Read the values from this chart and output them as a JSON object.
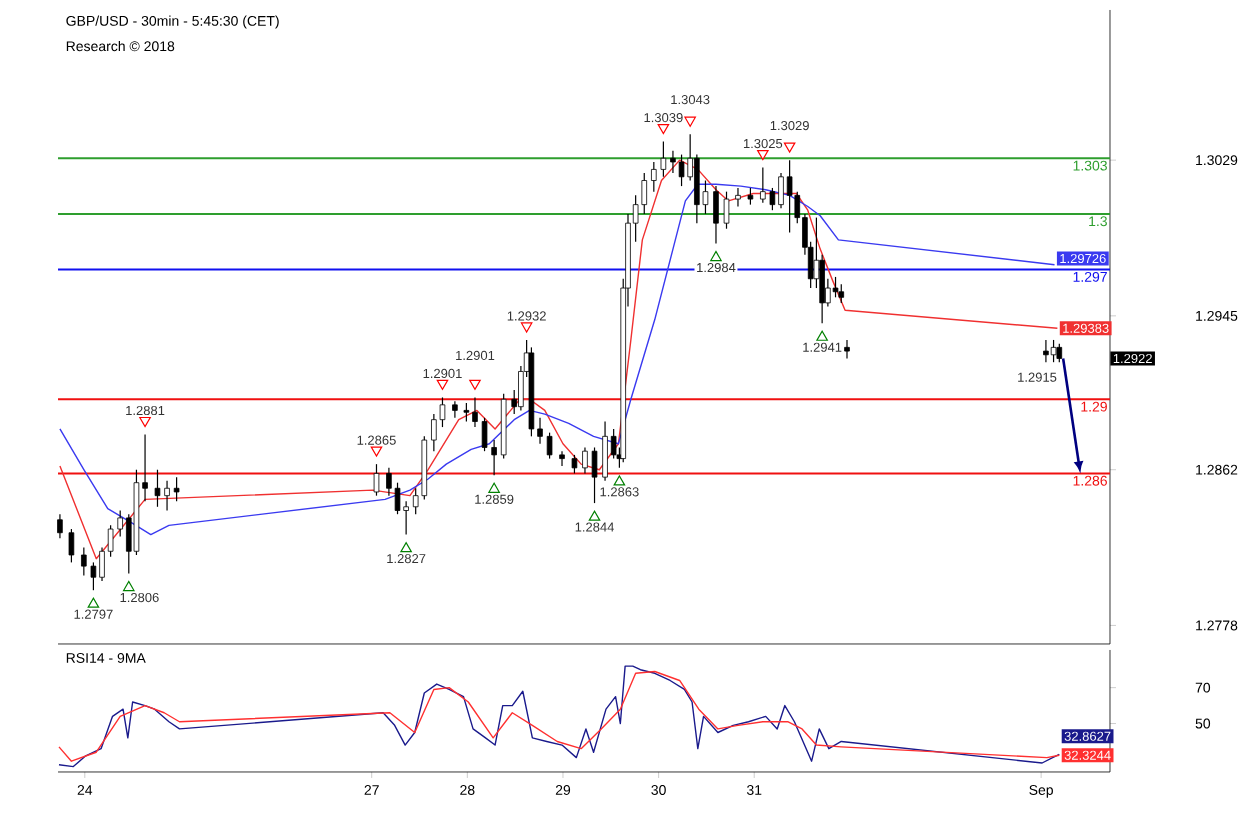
{
  "chart_data": [
    {
      "type": "candlestick",
      "title": "GBP/USD - 30min - 5:45:30 (CET)",
      "subtitle": "Research © 2018",
      "x": [
        23.74,
        23.86,
        23.99,
        24.09,
        24.18,
        24.27,
        24.37,
        24.46,
        24.54,
        24.63,
        24.76,
        24.86,
        24.96,
        27.05,
        27.18,
        27.27,
        27.36,
        27.46,
        27.55,
        27.65,
        27.74,
        27.87,
        27.99,
        28.08,
        28.18,
        28.28,
        28.38,
        28.49,
        28.56,
        28.62,
        28.67,
        28.76,
        28.86,
        28.99,
        29.12,
        29.23,
        29.33,
        29.44,
        29.53,
        29.59,
        29.63,
        29.68,
        29.76,
        29.85,
        29.95,
        30.05,
        30.15,
        30.24,
        30.33,
        30.4,
        30.49,
        30.6,
        30.71,
        30.83,
        30.96,
        31.09,
        31.19,
        31.28,
        31.37,
        31.45,
        31.53,
        31.59,
        31.65,
        31.71,
        31.77,
        31.85,
        31.91,
        31.97,
        34.05,
        34.13,
        34.19
      ],
      "ohlc": [
        [
          1.2835,
          1.2838,
          1.2825,
          1.2828
        ],
        [
          1.2828,
          1.283,
          1.2812,
          1.2816
        ],
        [
          1.2816,
          1.282,
          1.2805,
          1.281
        ],
        [
          1.281,
          1.2812,
          1.2797,
          1.2804
        ],
        [
          1.2804,
          1.282,
          1.2802,
          1.2818
        ],
        [
          1.2818,
          1.2832,
          1.2815,
          1.283
        ],
        [
          1.283,
          1.284,
          1.2826,
          1.2836
        ],
        [
          1.2836,
          1.2838,
          1.2806,
          1.2818
        ],
        [
          1.2818,
          1.2862,
          1.2816,
          1.2855
        ],
        [
          1.2855,
          1.2881,
          1.2845,
          1.2852
        ],
        [
          1.2852,
          1.2862,
          1.2842,
          1.2848
        ],
        [
          1.2848,
          1.2856,
          1.284,
          1.2852
        ],
        [
          1.2852,
          1.2858,
          1.2845,
          1.285
        ],
        [
          1.285,
          1.2865,
          1.2848,
          1.286
        ],
        [
          1.286,
          1.2863,
          1.2848,
          1.2852
        ],
        [
          1.2852,
          1.2855,
          1.2838,
          1.284
        ],
        [
          1.284,
          1.2845,
          1.2827,
          1.2842
        ],
        [
          1.2842,
          1.2852,
          1.2838,
          1.2848
        ],
        [
          1.2848,
          1.288,
          1.2846,
          1.2878
        ],
        [
          1.2878,
          1.2892,
          1.2872,
          1.2889
        ],
        [
          1.2889,
          1.2901,
          1.2885,
          1.2897
        ],
        [
          1.2897,
          1.2899,
          1.289,
          1.2894
        ],
        [
          1.2894,
          1.2898,
          1.2888,
          1.2893
        ],
        [
          1.2893,
          1.2901,
          1.2885,
          1.2888
        ],
        [
          1.2888,
          1.289,
          1.2872,
          1.2874
        ],
        [
          1.2874,
          1.2878,
          1.2859,
          1.287
        ],
        [
          1.287,
          1.2903,
          1.2868,
          1.29
        ],
        [
          1.29,
          1.2905,
          1.2892,
          1.2896
        ],
        [
          1.2896,
          1.2918,
          1.2894,
          1.2915
        ],
        [
          1.2915,
          1.2932,
          1.2912,
          1.2925
        ],
        [
          1.2925,
          1.2928,
          1.288,
          1.2884
        ],
        [
          1.2884,
          1.289,
          1.2876,
          1.288
        ],
        [
          1.288,
          1.2882,
          1.2868,
          1.287
        ],
        [
          1.287,
          1.2872,
          1.2864,
          1.2868
        ],
        [
          1.2868,
          1.287,
          1.286,
          1.2863
        ],
        [
          1.2863,
          1.2874,
          1.286,
          1.2872
        ],
        [
          1.2872,
          1.2874,
          1.2844,
          1.2858
        ],
        [
          1.2858,
          1.2888,
          1.2856,
          1.288
        ],
        [
          1.288,
          1.2884,
          1.2868,
          1.287
        ],
        [
          1.287,
          1.2874,
          1.2863,
          1.2868
        ],
        [
          1.2868,
          1.2965,
          1.2866,
          1.296
        ],
        [
          1.296,
          1.3,
          1.295,
          1.2995
        ],
        [
          1.2995,
          1.301,
          1.2985,
          1.3005
        ],
        [
          1.3005,
          1.3022,
          1.3,
          1.3018
        ],
        [
          1.3018,
          1.3028,
          1.3012,
          1.3024
        ],
        [
          1.3024,
          1.3039,
          1.302,
          1.303
        ],
        [
          1.303,
          1.3034,
          1.3022,
          1.3028
        ],
        [
          1.3028,
          1.3032,
          1.3015,
          1.302
        ],
        [
          1.302,
          1.3043,
          1.3018,
          1.303
        ],
        [
          1.303,
          1.3032,
          1.2995,
          1.3005
        ],
        [
          1.3005,
          1.3018,
          1.3,
          1.3012
        ],
        [
          1.3012,
          1.3015,
          1.2984,
          1.2995
        ],
        [
          1.2995,
          1.3012,
          1.2992,
          1.3008
        ],
        [
          1.3008,
          1.3014,
          1.3004,
          1.301
        ],
        [
          1.301,
          1.3014,
          1.3005,
          1.3008
        ],
        [
          1.3008,
          1.3025,
          1.3006,
          1.3012
        ],
        [
          1.3012,
          1.3014,
          1.3002,
          1.3005
        ],
        [
          1.3005,
          1.3022,
          1.3003,
          1.302
        ],
        [
          1.302,
          1.3029,
          1.299,
          1.301
        ],
        [
          1.301,
          1.3012,
          1.2995,
          1.2998
        ],
        [
          1.2998,
          1.3,
          1.2978,
          1.2982
        ],
        [
          1.2982,
          1.2985,
          1.296,
          1.2965
        ],
        [
          1.2965,
          1.2998,
          1.296,
          1.2975
        ],
        [
          1.2975,
          1.2978,
          1.2941,
          1.2952
        ],
        [
          1.2952,
          1.2965,
          1.295,
          1.296
        ],
        [
          1.296,
          1.2966,
          1.2955,
          1.2958
        ],
        [
          1.2958,
          1.2962,
          1.2952,
          1.2955
        ],
        [
          1.2928,
          1.2932,
          1.2922,
          1.2926
        ],
        [
          1.2926,
          1.2932,
          1.292,
          1.2924
        ],
        [
          1.2924,
          1.2932,
          1.292,
          1.2928
        ],
        [
          1.2928,
          1.293,
          1.292,
          1.2922
        ]
      ],
      "value_labels": [
        null,
        null,
        null,
        null,
        null,
        null,
        null,
        null,
        null,
        null,
        null,
        null,
        null,
        null,
        null,
        null,
        null,
        null,
        null,
        null,
        null,
        null,
        null,
        null,
        null,
        null,
        null,
        null,
        null,
        null,
        null,
        null,
        null,
        null,
        null,
        null,
        null,
        null,
        null,
        null,
        null,
        null,
        null,
        null,
        null,
        null,
        null,
        null,
        null,
        null,
        null,
        null,
        null,
        null,
        null,
        null,
        null,
        null,
        null,
        null,
        null,
        null,
        null,
        null,
        null,
        null,
        null,
        null,
        null,
        null,
        "1.2922"
      ],
      "color": "#000000",
      "series": [
        {
          "type": "line",
          "color": "#f03030",
          "x": [
            23.74,
            24.12,
            24.63,
            27.01,
            27.4,
            27.59,
            27.91,
            28.1,
            28.29,
            28.55,
            28.65,
            28.81,
            29,
            29.19,
            29.38,
            29.58,
            29.71,
            29.83,
            30.03,
            30.22,
            30.41,
            30.6,
            30.73,
            30.99,
            31.24,
            31.44,
            31.56,
            31.69,
            31.82,
            31.95,
            34.17
          ],
          "values": [
            1.2864,
            1.2814,
            1.2846,
            1.2851,
            1.2848,
            1.2862,
            1.2889,
            1.2894,
            1.2884,
            1.29,
            1.29,
            1.2894,
            1.2876,
            1.2865,
            1.2862,
            1.2876,
            1.2932,
            1.2986,
            1.3018,
            1.3029,
            1.3024,
            1.3013,
            1.3007,
            1.3011,
            1.3011,
            1.3011,
            1.3002,
            1.2981,
            1.2964,
            1.2948,
            1.29383
          ],
          "value_labels": [
            null,
            null,
            null,
            null,
            null,
            null,
            null,
            null,
            null,
            null,
            null,
            null,
            null,
            null,
            null,
            null,
            null,
            null,
            null,
            null,
            null,
            null,
            null,
            null,
            null,
            null,
            null,
            null,
            null,
            null,
            "1.29383"
          ]
        },
        {
          "type": "line",
          "color": "#3a3af0",
          "x": [
            23.74,
            23.99,
            24.24,
            24.5,
            24.69,
            24.88,
            27.14,
            27.4,
            27.59,
            27.78,
            28.04,
            28.23,
            28.49,
            28.65,
            28.81,
            29.06,
            29.32,
            29.58,
            29.71,
            29.96,
            30.15,
            30.28,
            30.41,
            30.6,
            30.86,
            31.12,
            31.37,
            31.56,
            31.69,
            31.88,
            34.14
          ],
          "values": [
            1.2884,
            1.2862,
            1.2841,
            1.2833,
            1.2827,
            1.2832,
            1.2846,
            1.2851,
            1.2857,
            1.2865,
            1.2873,
            1.2876,
            1.2889,
            1.2894,
            1.2892,
            1.2887,
            1.288,
            1.2876,
            1.29,
            1.2943,
            1.2981,
            1.3007,
            1.3016,
            1.3016,
            1.3015,
            1.3013,
            1.301,
            1.3004,
            1.2999,
            1.2986,
            1.29726
          ],
          "value_labels": [
            null,
            null,
            null,
            null,
            null,
            null,
            null,
            null,
            null,
            null,
            null,
            null,
            null,
            null,
            null,
            null,
            null,
            null,
            null,
            null,
            null,
            null,
            null,
            null,
            null,
            null,
            null,
            null,
            null,
            null,
            "1.29726"
          ]
        }
      ],
      "xlim": [
        23.72,
        34.72
      ],
      "ylim": [
        1.2768,
        1.311
      ],
      "yticks": [
        1.3029,
        1.2945,
        1.2862,
        1.2778
      ],
      "tick_labels": "y",
      "ref_lines": [
        {
          "axis": "y",
          "value": 1.303,
          "label": "1.303",
          "color": "#2e9e2e"
        },
        {
          "axis": "y",
          "value": 1.3,
          "label": "1.3",
          "color": "#2e9e2e"
        },
        {
          "axis": "y",
          "value": 1.297,
          "label": "1.297",
          "color": "#1010f0"
        },
        {
          "axis": "y",
          "value": 1.29,
          "label": "1.29",
          "color": "#f01010"
        },
        {
          "axis": "y",
          "value": 1.286,
          "label": "1.286",
          "color": "#f01010"
        }
      ],
      "annotations": [
        {
          "text": "1.2797",
          "x": 24.09,
          "y": 1.2797
        },
        {
          "text": "1.2806",
          "x": 24.46,
          "y": 1.2806
        },
        {
          "text": "1.2881",
          "x": 24.63,
          "y": 1.2881
        },
        {
          "text": "1.2865",
          "x": 27.05,
          "y": 1.2865
        },
        {
          "text": "1.2827",
          "x": 27.36,
          "y": 1.2827
        },
        {
          "text": "1.2901",
          "x": 27.74,
          "y": 1.2901
        },
        {
          "text": "1.2901",
          "x": 28.08,
          "y": 1.2901
        },
        {
          "text": "1.2859",
          "x": 28.28,
          "y": 1.2859
        },
        {
          "text": "1.2932",
          "x": 28.62,
          "y": 1.2932
        },
        {
          "text": "1.2844",
          "x": 29.33,
          "y": 1.2844
        },
        {
          "text": "1.2863",
          "x": 29.59,
          "y": 1.2863
        },
        {
          "text": "1.3039",
          "x": 30.05,
          "y": 1.3039
        },
        {
          "text": "1.3043",
          "x": 30.33,
          "y": 1.3043
        },
        {
          "text": "1.2984",
          "x": 30.6,
          "y": 1.2984
        },
        {
          "text": "1.3025",
          "x": 31.09,
          "y": 1.3025
        },
        {
          "text": "1.3029",
          "x": 31.37,
          "y": 1.3029
        },
        {
          "text": "1.2941",
          "x": 31.71,
          "y": 1.2941
        },
        "1.2915"
      ]
    },
    {
      "type": "line",
      "title": "RSI14 - 9MA",
      "series": [
        {
          "color": "#1a1a8c",
          "x": [
            23.73,
            23.88,
            24.01,
            24.17,
            24.29,
            24.4,
            24.45,
            24.5,
            24.63,
            24.73,
            24.88,
            24.99,
            27.12,
            27.24,
            27.35,
            27.45,
            27.55,
            27.68,
            27.81,
            27.96,
            28.06,
            28.19,
            28.29,
            28.37,
            28.47,
            28.58,
            28.68,
            28.83,
            28.99,
            29.14,
            29.24,
            29.32,
            29.45,
            29.55,
            29.6,
            29.65,
            29.73,
            29.81,
            29.96,
            30.12,
            30.27,
            30.35,
            30.41,
            30.47,
            30.62,
            30.78,
            30.94,
            31.12,
            31.24,
            31.32,
            31.42,
            31.6,
            31.68,
            31.78,
            31.91,
            34.01,
            34.12,
            34.19
          ],
          "values": [
            27,
            26,
            32,
            36,
            54,
            58,
            42,
            62,
            60,
            58,
            51,
            47,
            56,
            49,
            38,
            45,
            67,
            72,
            69,
            65,
            47,
            42,
            38,
            60,
            60,
            68,
            42,
            40,
            38,
            31,
            47,
            34,
            58,
            65,
            50,
            82,
            82,
            80,
            78,
            74,
            69,
            62,
            36,
            54,
            45,
            49,
            51,
            54,
            47,
            60,
            51,
            29,
            47,
            36,
            40,
            28,
            31,
            32.8627
          ],
          "value_labels": [
            null,
            null,
            null,
            null,
            null,
            null,
            null,
            null,
            null,
            null,
            null,
            null,
            null,
            null,
            null,
            null,
            null,
            null,
            null,
            null,
            null,
            null,
            null,
            null,
            null,
            null,
            null,
            null,
            null,
            null,
            null,
            null,
            null,
            null,
            null,
            null,
            null,
            null,
            null,
            null,
            null,
            null,
            null,
            null,
            null,
            null,
            null,
            null,
            null,
            null,
            null,
            null,
            null,
            null,
            null,
            null,
            null,
            "32.8627"
          ]
        },
        {
          "color": "#ff3030",
          "x": [
            23.73,
            23.86,
            24.12,
            24.37,
            24.63,
            24.83,
            24.99,
            27.19,
            27.45,
            27.65,
            27.81,
            28.01,
            28.27,
            28.47,
            28.68,
            28.94,
            29.19,
            29.4,
            29.6,
            29.76,
            29.96,
            30.22,
            30.42,
            30.62,
            30.83,
            31.09,
            31.35,
            31.5,
            31.65,
            31.91,
            34.06,
            34.19
          ],
          "values": [
            37,
            29,
            34,
            54,
            60,
            56,
            51,
            56,
            45,
            69,
            70,
            62,
            42,
            56,
            49,
            40,
            36,
            47,
            58,
            78,
            79,
            74,
            58,
            47,
            49,
            51,
            51,
            47,
            38,
            37,
            31,
            32.3244
          ],
          "value_labels": [
            null,
            null,
            null,
            null,
            null,
            null,
            null,
            null,
            null,
            null,
            null,
            null,
            null,
            null,
            null,
            null,
            null,
            null,
            null,
            null,
            null,
            null,
            null,
            null,
            null,
            null,
            null,
            null,
            null,
            null,
            null,
            "32.3244"
          ]
        }
      ],
      "xlim": [
        23.72,
        34.72
      ],
      "xticks": [
        24,
        27,
        28,
        29,
        30,
        31,
        {
          "value": 34,
          "label": "Sep"
        }
      ],
      "ylim": [
        23,
        91
      ],
      "yticks": [
        50,
        70
      ]
    }
  ]
}
